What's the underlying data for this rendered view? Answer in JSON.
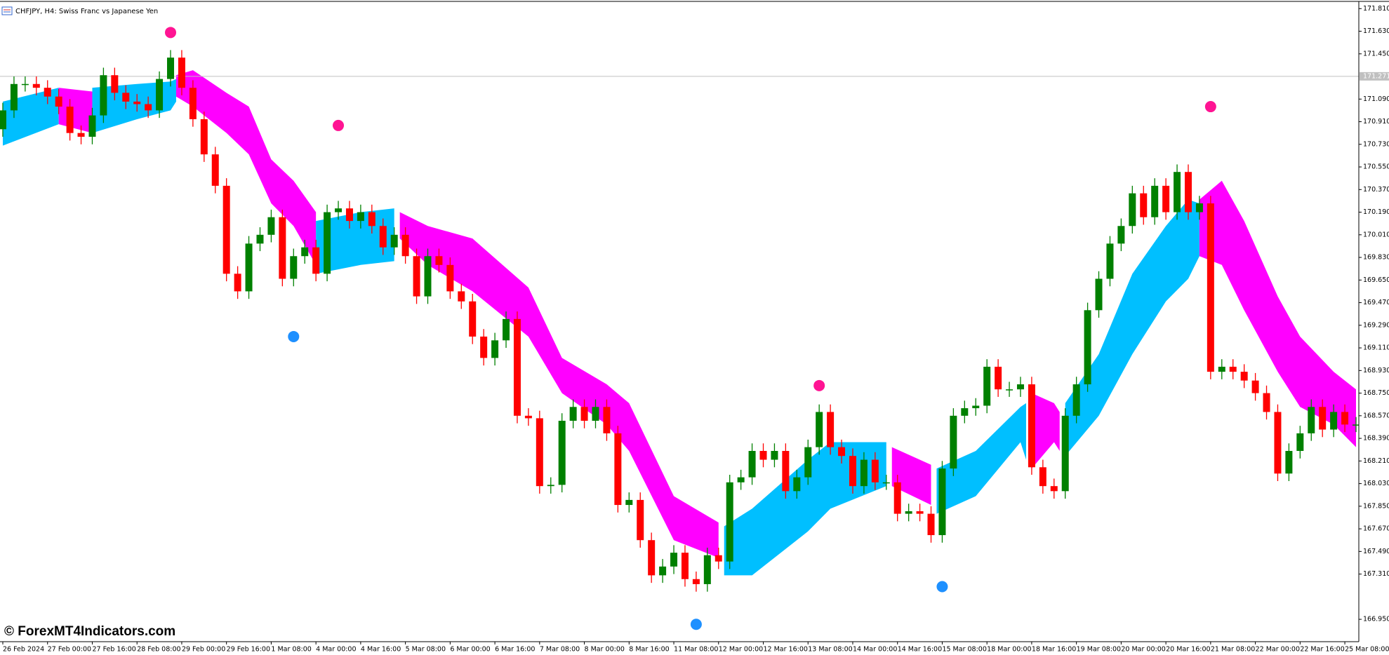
{
  "chart_data": {
    "type": "candlestick",
    "title": "CHFJPY, H4:  Swiss Franc vs Japanese Yen",
    "watermark": "© ForexMT4Indicators.com",
    "up_color": "#008000",
    "down_color": "#ff0000",
    "categories": [
      "26 Feb 2024",
      null,
      null,
      null,
      "27 Feb 00:00",
      null,
      null,
      null,
      "27 Feb 16:00",
      null,
      null,
      null,
      "28 Feb 08:00",
      null,
      null,
      null,
      "29 Feb 00:00",
      null,
      null,
      null,
      "29 Feb 16:00",
      null,
      null,
      null,
      "1 Mar 08:00",
      null,
      null,
      null,
      "4 Mar 00:00",
      null,
      null,
      null,
      "4 Mar 16:00",
      null,
      null,
      null,
      "5 Mar 08:00",
      null,
      null,
      null,
      "6 Mar 00:00",
      null,
      null,
      null,
      "6 Mar 16:00",
      null,
      null,
      null,
      "7 Mar 08:00",
      null,
      null,
      null,
      "8 Mar 00:00",
      null,
      null,
      null,
      "8 Mar 16:00",
      null,
      null,
      null,
      "11 Mar 08:00",
      null,
      null,
      null,
      "12 Mar 00:00",
      null,
      null,
      null,
      "12 Mar 16:00",
      null,
      null,
      null,
      "13 Mar 08:00",
      null,
      null,
      null,
      "14 Mar 00:00",
      null,
      null,
      null,
      "14 Mar 16:00",
      null,
      null,
      null,
      "15 Mar 08:00",
      null,
      null,
      null,
      "18 Mar 00:00",
      null,
      null,
      null,
      "18 Mar 16:00",
      null,
      null,
      null,
      "19 Mar 08:00",
      null,
      null,
      null,
      "20 Mar 00:00",
      null,
      null,
      null,
      "20 Mar 16:00",
      null,
      null,
      null,
      "21 Mar 08:00",
      null,
      null,
      null,
      "22 Mar 00:00",
      null,
      null,
      null,
      "22 Mar 16:00",
      null,
      null,
      null,
      "25 Mar 08:00",
      null
    ],
    "open": [
      170.85,
      171.0,
      171.21,
      171.21,
      171.18,
      171.11,
      171.03,
      170.82,
      170.79,
      170.96,
      171.28,
      171.14,
      171.07,
      171.05,
      171.0,
      171.25,
      171.42,
      171.18,
      170.93,
      170.65,
      170.4,
      169.7,
      169.56,
      169.94,
      170.01,
      170.15,
      169.66,
      169.84,
      169.91,
      169.7,
      170.19,
      170.22,
      170.12,
      170.19,
      170.08,
      169.91,
      170.01,
      169.84,
      169.52,
      169.84,
      169.77,
      169.56,
      169.48,
      169.2,
      169.03,
      169.17,
      169.34,
      168.57,
      168.55,
      168.01,
      168.02,
      168.53,
      168.64,
      168.53,
      168.64,
      168.43,
      167.86,
      167.9,
      167.58,
      167.3,
      167.37,
      167.48,
      167.27,
      167.23,
      167.46,
      167.41,
      168.04,
      168.08,
      168.29,
      168.22,
      168.29,
      167.97,
      168.08,
      168.32,
      168.6,
      168.32,
      168.25,
      168.01,
      168.22,
      168.04,
      168.04,
      167.79,
      167.81,
      167.79,
      167.62,
      168.15,
      168.57,
      168.63,
      168.65,
      168.96,
      168.78,
      168.78,
      168.82,
      168.16,
      168.01,
      167.97,
      168.57,
      168.82,
      169.41,
      169.66,
      169.94,
      170.08,
      170.34,
      170.15,
      170.4,
      170.19,
      170.51,
      170.19,
      170.26,
      168.92,
      168.96,
      168.92,
      168.85,
      168.75,
      168.6,
      168.11,
      168.29,
      168.43,
      168.64,
      168.46,
      168.6,
      168.5
    ],
    "high": [
      171.06,
      171.27,
      171.27,
      171.27,
      171.24,
      171.17,
      171.09,
      170.88,
      171.02,
      171.34,
      171.34,
      171.2,
      171.13,
      171.11,
      171.31,
      171.48,
      171.48,
      171.24,
      170.99,
      170.71,
      170.46,
      169.76,
      170.0,
      170.07,
      170.21,
      170.21,
      169.9,
      169.97,
      169.97,
      170.25,
      170.28,
      170.28,
      170.25,
      170.25,
      170.14,
      170.07,
      170.07,
      169.9,
      169.9,
      169.9,
      169.83,
      169.62,
      169.54,
      169.26,
      169.23,
      169.4,
      169.4,
      168.63,
      168.61,
      168.08,
      168.59,
      168.7,
      168.7,
      168.7,
      168.7,
      168.49,
      167.96,
      167.96,
      167.64,
      167.43,
      167.54,
      167.54,
      167.33,
      167.52,
      167.52,
      168.1,
      168.14,
      168.35,
      168.35,
      168.35,
      168.35,
      168.14,
      168.38,
      168.66,
      168.66,
      168.38,
      168.31,
      168.28,
      168.28,
      168.1,
      168.1,
      167.87,
      167.87,
      167.85,
      168.21,
      168.63,
      168.69,
      168.71,
      169.02,
      169.02,
      168.84,
      168.88,
      168.88,
      168.22,
      168.07,
      168.63,
      168.88,
      169.47,
      169.72,
      170.0,
      170.14,
      170.4,
      170.4,
      170.46,
      170.46,
      170.57,
      170.57,
      170.32,
      170.32,
      169.02,
      169.02,
      168.98,
      168.91,
      168.81,
      168.66,
      168.35,
      168.49,
      168.7,
      168.7,
      168.66,
      168.66,
      168.56
    ],
    "low": [
      170.79,
      170.94,
      171.15,
      171.12,
      171.05,
      170.97,
      170.76,
      170.73,
      170.73,
      170.9,
      171.08,
      171.01,
      170.99,
      170.94,
      170.94,
      171.19,
      171.12,
      170.87,
      170.59,
      170.34,
      169.64,
      169.5,
      169.5,
      169.88,
      169.95,
      169.6,
      169.6,
      169.78,
      169.64,
      169.64,
      170.13,
      170.06,
      170.06,
      170.02,
      169.85,
      169.85,
      169.78,
      169.46,
      169.46,
      169.71,
      169.5,
      169.42,
      169.14,
      168.97,
      168.97,
      169.11,
      168.51,
      168.49,
      167.95,
      167.95,
      167.96,
      168.47,
      168.47,
      168.47,
      168.37,
      167.8,
      167.8,
      167.52,
      167.24,
      167.24,
      167.31,
      167.21,
      167.17,
      167.17,
      167.35,
      167.35,
      167.98,
      168.02,
      168.16,
      168.16,
      167.91,
      167.91,
      168.02,
      168.26,
      168.26,
      168.19,
      167.95,
      167.95,
      167.98,
      167.98,
      167.73,
      167.73,
      167.73,
      167.56,
      167.56,
      168.09,
      168.51,
      168.57,
      168.59,
      168.72,
      168.72,
      168.72,
      168.1,
      167.95,
      167.91,
      167.91,
      168.51,
      168.76,
      169.35,
      169.6,
      169.88,
      170.02,
      170.09,
      170.09,
      170.13,
      170.13,
      170.13,
      170.13,
      168.86,
      168.86,
      168.86,
      168.79,
      168.69,
      168.54,
      168.05,
      168.05,
      168.23,
      168.37,
      168.4,
      168.4,
      168.44,
      168.44
    ],
    "close": [
      171.0,
      171.21,
      171.21,
      171.18,
      171.11,
      171.03,
      170.82,
      170.79,
      170.96,
      171.28,
      171.14,
      171.07,
      171.05,
      171.0,
      171.25,
      171.42,
      171.18,
      170.93,
      170.65,
      170.4,
      169.7,
      169.56,
      169.94,
      170.01,
      170.15,
      169.66,
      169.84,
      169.91,
      169.7,
      170.19,
      170.22,
      170.12,
      170.19,
      170.08,
      169.91,
      170.01,
      169.84,
      169.52,
      169.84,
      169.77,
      169.56,
      169.48,
      169.2,
      169.03,
      169.17,
      169.34,
      168.57,
      168.55,
      168.01,
      168.02,
      168.53,
      168.64,
      168.53,
      168.64,
      168.43,
      167.86,
      167.9,
      167.58,
      167.3,
      167.37,
      167.48,
      167.27,
      167.23,
      167.46,
      167.41,
      168.04,
      168.08,
      168.29,
      168.22,
      168.29,
      167.97,
      168.08,
      168.32,
      168.6,
      168.32,
      168.25,
      168.01,
      168.22,
      168.04,
      168.04,
      167.79,
      167.81,
      167.79,
      167.62,
      168.15,
      168.57,
      168.63,
      168.65,
      168.96,
      168.78,
      168.78,
      168.82,
      168.16,
      168.01,
      167.97,
      168.57,
      168.82,
      169.41,
      169.66,
      169.94,
      170.08,
      170.34,
      170.15,
      170.4,
      170.19,
      170.51,
      170.19,
      170.26,
      168.92,
      168.96,
      168.92,
      168.85,
      168.75,
      168.6,
      168.11,
      168.29,
      168.43,
      168.64,
      168.46,
      168.6,
      168.5,
      168.5
    ],
    "ylim": [
      166.772,
      171.845
    ],
    "yticks": [
      {
        "value": 171.81,
        "label": "171.810"
      },
      {
        "value": 171.63,
        "label": "171.630"
      },
      {
        "value": 171.45,
        "label": "171.450"
      },
      {
        "value": 171.09,
        "label": "171.090"
      },
      {
        "value": 170.91,
        "label": "170.910"
      },
      {
        "value": 170.73,
        "label": "170.730"
      },
      {
        "value": 170.55,
        "label": "170.550"
      },
      {
        "value": 170.37,
        "label": "170.370"
      },
      {
        "value": 170.19,
        "label": "170.190"
      },
      {
        "value": 170.01,
        "label": "170.010"
      },
      {
        "value": 169.83,
        "label": "169.830"
      },
      {
        "value": 169.65,
        "label": "169.650"
      },
      {
        "value": 169.47,
        "label": "169.470"
      },
      {
        "value": 169.29,
        "label": "169.290"
      },
      {
        "value": 169.11,
        "label": "169.110"
      },
      {
        "value": 168.93,
        "label": "168.930"
      },
      {
        "value": 168.75,
        "label": "168.750"
      },
      {
        "value": 168.57,
        "label": "168.570"
      },
      {
        "value": 168.39,
        "label": "168.390"
      },
      {
        "value": 168.21,
        "label": "168.210"
      },
      {
        "value": 168.03,
        "label": "168.030"
      },
      {
        "value": 167.85,
        "label": "167.850"
      },
      {
        "value": 167.67,
        "label": "167.670"
      },
      {
        "value": 167.49,
        "label": "167.490"
      },
      {
        "value": 167.31,
        "label": "167.310"
      },
      {
        "value": 166.95,
        "label": "166.950"
      }
    ],
    "current_price": {
      "value": 171.271,
      "label": "171.271"
    },
    "bands": [
      {
        "color": "#00bfff",
        "x": [
          0,
          5
        ],
        "upper": [
          171.07,
          171.18
        ],
        "lower": [
          170.72,
          170.89
        ]
      },
      {
        "color": "#ff00ff",
        "x": [
          5,
          8
        ],
        "upper": [
          171.18,
          171.15
        ],
        "lower": [
          170.89,
          170.82
        ]
      },
      {
        "color": "#00bfff",
        "x": [
          8,
          12,
          15,
          15.5
        ],
        "upper": [
          171.18,
          171.21,
          171.23,
          171.25
        ],
        "lower": [
          170.82,
          170.93,
          171.0,
          171.07
        ]
      },
      {
        "color": "#ff00ff",
        "x": [
          15.5,
          17,
          20,
          22,
          24,
          26,
          28
        ],
        "upper": [
          171.28,
          171.32,
          171.14,
          171.03,
          170.61,
          170.44,
          170.19
        ],
        "lower": [
          171.11,
          171.03,
          170.82,
          170.65,
          170.26,
          170.08,
          169.77
        ]
      },
      {
        "color": "#00bfff",
        "x": [
          28,
          32,
          35
        ],
        "upper": [
          170.12,
          170.19,
          170.22
        ],
        "lower": [
          169.7,
          169.77,
          169.8
        ]
      },
      {
        "color": "#ff00ff",
        "x": [
          35.5,
          38,
          42,
          47,
          50,
          54,
          56,
          60,
          64
        ],
        "upper": [
          170.19,
          170.08,
          169.98,
          169.59,
          169.03,
          168.82,
          168.67,
          167.93,
          167.72
        ],
        "lower": [
          169.98,
          169.77,
          169.56,
          169.2,
          168.75,
          168.5,
          168.29,
          167.58,
          167.44
        ]
      },
      {
        "color": "#00bfff",
        "x": [
          64.5,
          67,
          72,
          74,
          79
        ],
        "upper": [
          167.69,
          167.83,
          168.22,
          168.36,
          168.36
        ],
        "lower": [
          167.3,
          167.3,
          167.65,
          167.83,
          168.01
        ]
      },
      {
        "color": "#ff00ff",
        "x": [
          79.5,
          83
        ],
        "upper": [
          168.32,
          168.18
        ],
        "lower": [
          168.01,
          167.86
        ]
      },
      {
        "color": "#00bfff",
        "x": [
          83.5,
          87,
          91,
          91.5
        ],
        "upper": [
          168.15,
          168.29,
          168.64,
          168.67
        ],
        "lower": [
          167.79,
          167.93,
          168.36,
          168.22
        ]
      },
      {
        "color": "#ff00ff",
        "x": [
          92,
          94,
          94.5
        ],
        "upper": [
          168.75,
          168.67,
          168.6
        ],
        "lower": [
          168.15,
          168.36,
          168.29
        ]
      },
      {
        "color": "#00bfff",
        "x": [
          95,
          98,
          101,
          104,
          106,
          107
        ],
        "upper": [
          168.67,
          169.06,
          169.7,
          170.08,
          170.29,
          170.26
        ],
        "lower": [
          168.25,
          168.57,
          169.06,
          169.48,
          169.66,
          169.84
        ]
      },
      {
        "color": "#ff00ff",
        "x": [
          107,
          109,
          111,
          114,
          116,
          119,
          121
        ],
        "upper": [
          170.29,
          170.44,
          170.12,
          169.52,
          169.2,
          168.92,
          168.78
        ],
        "lower": [
          169.84,
          169.77,
          169.41,
          168.92,
          168.64,
          168.5,
          168.32
        ]
      }
    ],
    "signals": [
      {
        "color": "#ff1493",
        "x": [
          15,
          30,
          73,
          108
        ],
        "y": [
          171.62,
          170.88,
          168.81,
          171.03
        ]
      },
      {
        "color": "#1e90ff",
        "x": [
          26,
          62,
          84
        ],
        "y": [
          169.2,
          166.91,
          167.21
        ]
      }
    ]
  }
}
